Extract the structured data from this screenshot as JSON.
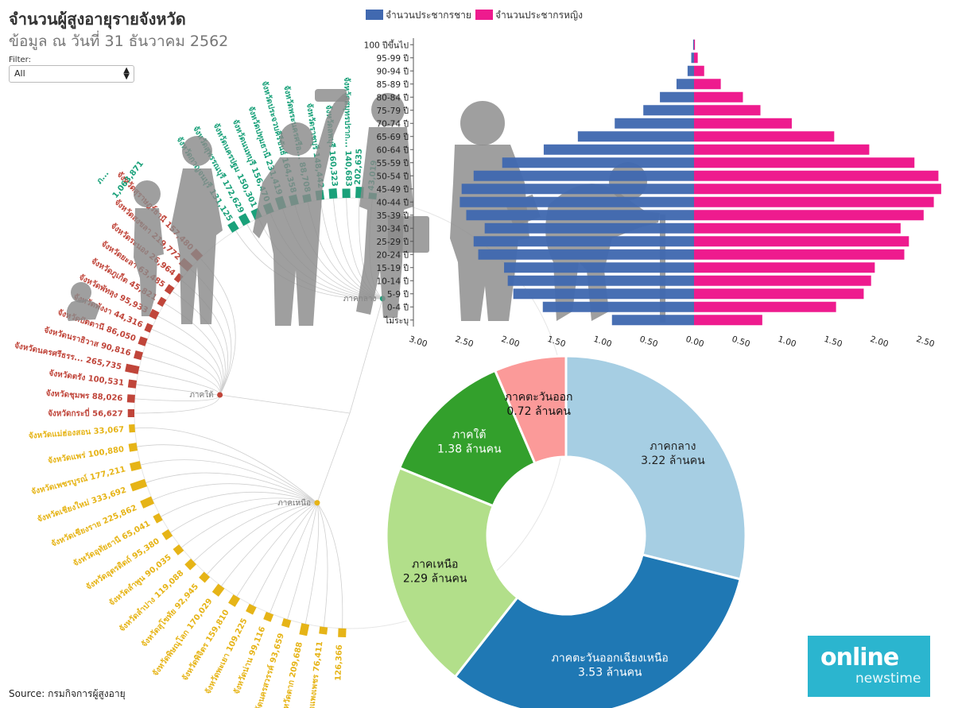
{
  "header": {
    "title": "จำนวนผู้สูงอายุรายจังหวัด",
    "subtitle": "ข้อมูล ณ วันที่ 31 ธันวาคม 2562"
  },
  "filter": {
    "label": "Filter:",
    "value": "All"
  },
  "source": "Source: กรมกิจการผู้สูงอายุ",
  "logo": {
    "line1": "online",
    "line2": "newstime"
  },
  "colors": {
    "male": "#4169b0",
    "female": "#ee1b8e",
    "south": "#c0453a",
    "north": "#e6b417",
    "central": "#1aa17a"
  },
  "chart_data": [
    {
      "type": "bar",
      "subtype": "population-pyramid",
      "categories": [
        "100 ปีขึ้นไป",
        "95-99 ปี",
        "90-94 ปี",
        "85-89 ปี",
        "80-84 ปี",
        "75-79 ปี",
        "70-74 ปี",
        "65-69 ปี",
        "60-64 ปี",
        "55-59 ปี",
        "50-54 ปี",
        "45-49 ปี",
        "40-44 ปี",
        "35-39 ปี",
        "30-34 ปี",
        "25-29 ปี",
        "20-24 ปี",
        "15-19 ปี",
        "10-14 ปี",
        "5-9 ปี",
        "0-4 ปี",
        "ไม่ระบุ"
      ],
      "series": [
        {
          "name": "จำนวนประชากรชาย",
          "values": [
            0.01,
            0.03,
            0.07,
            0.19,
            0.37,
            0.55,
            0.86,
            1.26,
            1.63,
            2.08,
            2.39,
            2.52,
            2.54,
            2.47,
            2.27,
            2.39,
            2.34,
            2.06,
            2.02,
            1.96,
            1.64,
            0.89
          ]
        },
        {
          "name": "จำนวนประชากรหญิง",
          "values": [
            0.01,
            0.04,
            0.11,
            0.29,
            0.53,
            0.72,
            1.06,
            1.52,
            1.9,
            2.39,
            2.65,
            2.68,
            2.6,
            2.49,
            2.24,
            2.33,
            2.28,
            1.96,
            1.92,
            1.84,
            1.54,
            0.74
          ]
        }
      ],
      "x_ticks": [
        "3.00",
        "2.50",
        "2.00",
        "1.50",
        "1.00",
        "0.50",
        "0.00",
        "0.50",
        "1.00",
        "1.50",
        "2.00",
        "2.50"
      ],
      "xlim": [
        -3.0,
        2.75
      ]
    },
    {
      "type": "pie",
      "subtype": "donut",
      "slices": [
        {
          "label": "ภาคกลาง",
          "value_label": "3.22 ล้านคน",
          "value": 3.22,
          "color": "#a6cee3"
        },
        {
          "label": "ภาคตะวันออกเฉียงเหนือ",
          "value_label": "3.53 ล้านคน",
          "value": 3.53,
          "color": "#1f78b4"
        },
        {
          "label": "ภาคเหนือ",
          "value_label": "2.29 ล้านคน",
          "value": 2.29,
          "color": "#b2df8a"
        },
        {
          "label": "ภาคใต้",
          "value_label": "1.38 ล้านคน",
          "value": 1.38,
          "color": "#33a02c"
        },
        {
          "label": "ภาคตะวันออก",
          "value_label": "0.72 ล้านคน",
          "value": 0.72,
          "color": "#fb9a99"
        }
      ]
    },
    {
      "type": "radial-tree",
      "region_nodes": [
        {
          "name": "ภาคใต้",
          "color": "#c0453a"
        },
        {
          "name": "ภาคเหนือ",
          "color": "#e6b417"
        },
        {
          "name": "ภาคกลาง",
          "color": "#1aa17a"
        }
      ],
      "south": [
        [
          "จังหวัดสุราษฎร์ธานี",
          "157,480"
        ],
        [
          "จังหวัดสงขลา",
          "219,772"
        ],
        [
          "จังหวัดระนอง",
          "26,964"
        ],
        [
          "จังหวัดยะลา",
          "63,485"
        ],
        [
          "จังหวัดภูเก็ต",
          "45,821"
        ],
        [
          "จังหวัดพัทลุง",
          "95,933"
        ],
        [
          "จังหวัดพังงา",
          "44,316"
        ],
        [
          "จังหวัดปัตตานี",
          "86,050"
        ],
        [
          "จังหวัดนราธิวาส",
          "90,816"
        ],
        [
          "จังหวัดนครศรีธรร...",
          "265,735"
        ],
        [
          "จังหวัดตรัง",
          "100,531"
        ],
        [
          "จังหวัดชุมพร",
          "88,026"
        ],
        [
          "จังหวัดกระบี่",
          "56,627"
        ]
      ],
      "north": [
        [
          "จังหวัดแม่ฮ่องสอน",
          "33,067"
        ],
        [
          "จังหวัดแพร่",
          "100,880"
        ],
        [
          "จังหวัดเพชรบูรณ์",
          "177,211"
        ],
        [
          "จังหวัดเชียงใหม่",
          "333,692"
        ],
        [
          "จังหวัดเชียงราย",
          "225,862"
        ],
        [
          "จังหวัดอุทัยธานี",
          "65,041"
        ],
        [
          "จังหวัดอุตรดิตถ์",
          "95,380"
        ],
        [
          "จังหวัดลำพูน",
          "90,035"
        ],
        [
          "จังหวัดลำปาง",
          "119,088"
        ],
        [
          "จังหวัดสุโขทัย",
          "92,945"
        ],
        [
          "จังหวัดพิษณุโลก",
          "170,029"
        ],
        [
          "จังหวัดพิจิตร",
          "159,810"
        ],
        [
          "จังหวัดพะเยา",
          "109,225"
        ],
        [
          "จังหวัดน่าน",
          "99,116"
        ],
        [
          "จังหวัดนครสวรรค์",
          "93,659"
        ],
        [
          "จังหวัดตาก",
          "209,688"
        ],
        [
          "จังหวัดกำแพงเพชร",
          "76,411"
        ],
        [
          "",
          "126,366"
        ]
      ],
      "central": [
        [
          "จังหวัดกาญจนบุรี",
          "131,125"
        ],
        [
          "จังหวัดสุพรรณบุรี",
          "172,629"
        ],
        [
          "จังหวัดนครปฐม",
          "150,301"
        ],
        [
          "จังหวัดนนทบุรี",
          "156,470"
        ],
        [
          "จังหวัดปทุมธานี",
          "231,419"
        ],
        [
          "จังหวัดประจวบคีรีขันธ์",
          "164,358"
        ],
        [
          "จังหวัดพระนครศรีอ...",
          "88,708"
        ],
        [
          "จังหวัดราชบุรี",
          "148,442"
        ],
        [
          "จังหวัดลพบุรี",
          "160,323"
        ],
        [
          "จังหวัดสมุทรปราก...",
          "140,683"
        ],
        [
          "",
          "202,635"
        ],
        [
          "",
          "43,019"
        ]
      ],
      "extra_labels": [
        "ภ...",
        "1,063,871",
        "ภาคกลาง"
      ]
    }
  ]
}
